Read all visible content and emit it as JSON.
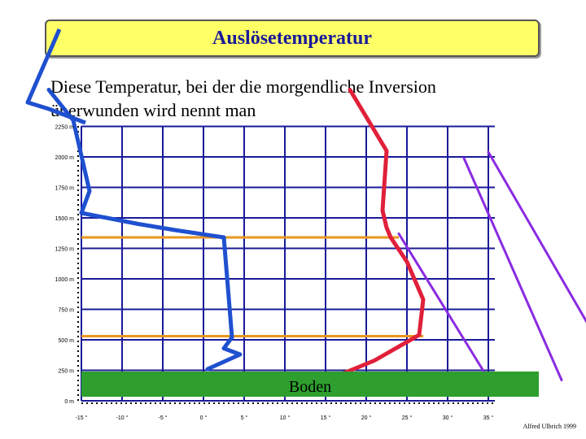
{
  "title": "Auslösetemperatur",
  "intro": {
    "line1": "Diese Temperatur, bei der die morgendliche Inversion",
    "line2": "überwunden wird nennt man"
  },
  "ground_label": "Boden",
  "credit": "Alfred Ulbrich 1999",
  "colors": {
    "title_bg": "#ffff66",
    "title_text": "#1a1a9a",
    "grid": "#1a1a9a",
    "ground": "#2e9e2e",
    "env_curve": "#1f50d0",
    "parcel_curve": "#e0203a",
    "dry_adiabat": "#8a2be2",
    "inversion_line": "#e8961e"
  },
  "chart_data": {
    "type": "line",
    "y_ticks": [
      "0 m",
      "250 m",
      "500 m",
      "750 m",
      "1000 m",
      "1250 m",
      "1500 m",
      "1750 m",
      "2000 m",
      "2250 m"
    ],
    "x_ticks": [
      "-15 °",
      "-10 °",
      "-5 °",
      "0 °",
      "5 °",
      "10 °",
      "15 °",
      "20 °",
      "25 °",
      "30 °",
      "35 °"
    ],
    "xlim": [
      -15,
      35
    ],
    "ylim": [
      0,
      2300
    ],
    "series": [
      {
        "key": "env",
        "x": [
          -19,
          -16,
          -14,
          -15,
          -8,
          -3.5,
          2.5,
          3.5,
          2.5,
          4.5,
          0.5
        ],
        "y": [
          2550,
          2300,
          1720,
          1540,
          1450,
          1400,
          1340,
          520,
          430,
          380,
          260
        ]
      },
      {
        "key": "parcel",
        "x": [
          18,
          22.5,
          22,
          22.5,
          23,
          25,
          27,
          26.5,
          21,
          13
        ],
        "y": [
          2550,
          2050,
          1560,
          1420,
          1340,
          1140,
          830,
          540,
          330,
          110
        ]
      },
      {
        "key": "adiabat1",
        "x": [
          24,
          35
        ],
        "y": [
          1370,
          180
        ]
      },
      {
        "key": "adiabat2",
        "x": [
          32,
          44
        ],
        "y": [
          1990,
          170
        ]
      },
      {
        "key": "adiabat3",
        "x": [
          35,
          50
        ],
        "y": [
          2040,
          310
        ]
      }
    ],
    "inversion_lines": [
      {
        "y": 1340,
        "x": [
          -15,
          24
        ]
      },
      {
        "y": 530,
        "x": [
          -15,
          27
        ]
      }
    ]
  }
}
